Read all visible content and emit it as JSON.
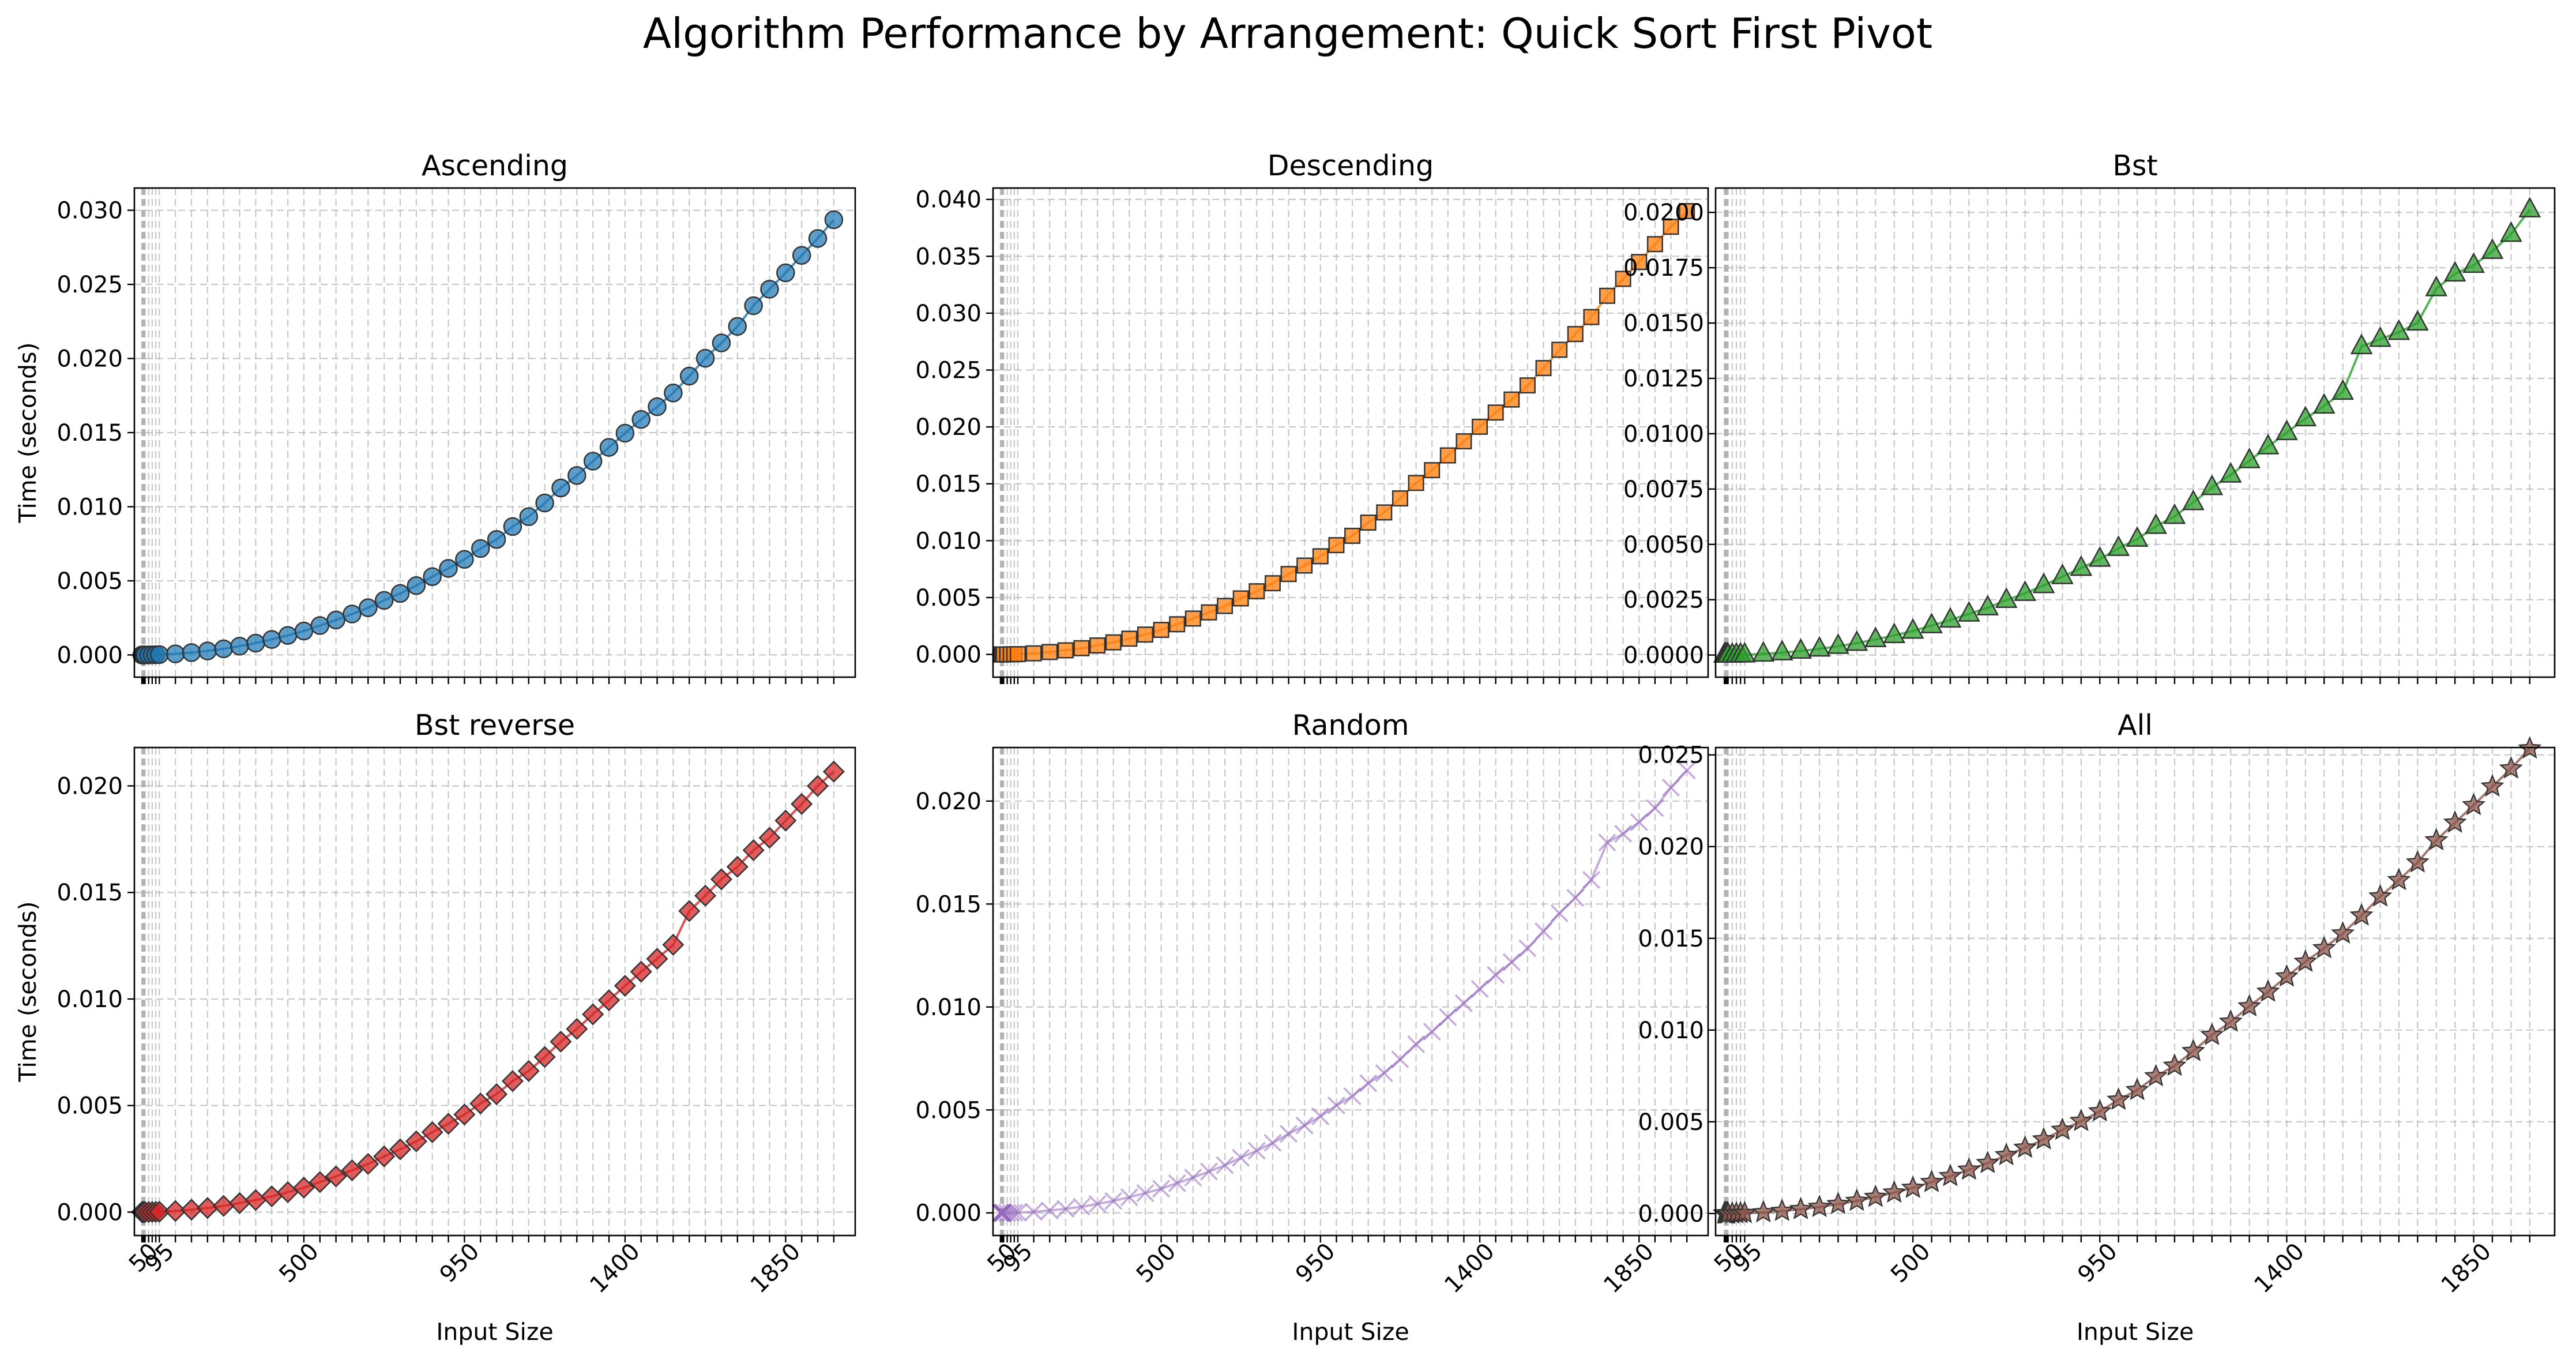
{
  "chart_data": {
    "type": "line",
    "title": "Algorithm Performance by Arrangement: Quick Sort First Pivot",
    "xlabel": "Input Size",
    "ylabel": "Time (seconds)",
    "x": [
      1,
      2,
      3,
      4,
      5,
      6,
      7,
      8,
      9,
      10,
      20,
      30,
      40,
      50,
      95,
      140,
      185,
      230,
      275,
      320,
      365,
      410,
      455,
      500,
      545,
      590,
      635,
      680,
      725,
      770,
      815,
      860,
      905,
      950,
      995,
      1040,
      1085,
      1130,
      1175,
      1220,
      1265,
      1310,
      1355,
      1400,
      1445,
      1490,
      1535,
      1580,
      1625,
      1670,
      1715,
      1760,
      1805,
      1850,
      1895,
      1940
    ],
    "xticks": [
      50,
      95,
      500,
      950,
      1400,
      1850
    ],
    "grid": true,
    "panels": [
      {
        "title": "Ascending",
        "color": "#1f77b4",
        "marker": "circle",
        "yticks": [
          0.0,
          0.005,
          0.01,
          0.015,
          0.02,
          0.025,
          0.03
        ],
        "ylim": [
          -0.0015,
          0.0315
        ],
        "values": [
          0,
          0,
          0,
          0,
          0,
          0,
          0,
          0,
          0,
          1e-06,
          4e-06,
          8e-06,
          1.5e-05,
          2.1e-05,
          7.2e-05,
          0.000159,
          0.00027,
          0.000411,
          0.000593,
          0.000796,
          0.001044,
          0.001318,
          0.001613,
          0.001982,
          0.002358,
          0.002762,
          0.003184,
          0.003681,
          0.004149,
          0.004677,
          0.005283,
          0.005838,
          0.006449,
          0.007179,
          0.007793,
          0.008662,
          0.009329,
          0.010252,
          0.011266,
          0.012106,
          0.013073,
          0.014003,
          0.014959,
          0.015891,
          0.016747,
          0.017675,
          0.018813,
          0.020016,
          0.021049,
          0.022166,
          0.023561,
          0.024675,
          0.025781,
          0.026956,
          0.028097,
          0.029359
        ]
      },
      {
        "title": "Descending",
        "color": "#ff7f0e",
        "marker": "square",
        "yticks": [
          0.0,
          0.005,
          0.01,
          0.015,
          0.02,
          0.025,
          0.03,
          0.035,
          0.04
        ],
        "ylim": [
          -0.002,
          0.041
        ],
        "values": [
          0,
          0,
          0,
          0,
          0,
          0,
          0,
          0,
          0,
          1e-06,
          5e-06,
          1e-05,
          1.8e-05,
          2.7e-05,
          9.4e-05,
          0.000212,
          0.000359,
          0.000547,
          0.000789,
          0.001059,
          0.001383,
          0.001744,
          0.002155,
          0.002651,
          0.003153,
          0.003694,
          0.004259,
          0.004925,
          0.005551,
          0.006258,
          0.007068,
          0.007812,
          0.008628,
          0.009605,
          0.010427,
          0.011589,
          0.012482,
          0.013718,
          0.015076,
          0.016198,
          0.017494,
          0.018736,
          0.020015,
          0.021263,
          0.022407,
          0.023649,
          0.025172,
          0.026781,
          0.028163,
          0.029658,
          0.031526,
          0.033016,
          0.034496,
          0.036068,
          0.037595,
          0.038971
        ]
      },
      {
        "title": "Bst",
        "color": "#2ca02c",
        "marker": "triangle",
        "yticks": [
          0.0,
          0.0025,
          0.005,
          0.0075,
          0.01,
          0.0125,
          0.015,
          0.0175,
          0.02
        ],
        "ylim": [
          -0.001,
          0.0211
        ],
        "values": [
          0,
          0,
          0,
          0,
          0,
          0,
          0,
          0,
          0,
          1e-06,
          2e-06,
          5e-06,
          9e-06,
          1.3e-05,
          4.8e-05,
          0.000107,
          0.000181,
          0.000276,
          0.000398,
          0.000535,
          0.000701,
          0.000886,
          0.001085,
          0.001332,
          0.001585,
          0.001857,
          0.002139,
          0.002474,
          0.002789,
          0.003144,
          0.003551,
          0.003924,
          0.004334,
          0.004825,
          0.005237,
          0.005821,
          0.00627,
          0.006891,
          0.007573,
          0.008137,
          0.008787,
          0.009412,
          0.010054,
          0.01068,
          0.011255,
          0.011879,
          0.013939,
          0.014271,
          0.014584,
          0.015006,
          0.016558,
          0.017221,
          0.017612,
          0.018245,
          0.019014,
          0.020121
        ]
      },
      {
        "title": "Bst reverse",
        "color": "#d62728",
        "marker": "diamond",
        "yticks": [
          0.0,
          0.005,
          0.01,
          0.015,
          0.02
        ],
        "ylim": [
          -0.0011,
          0.0218
        ],
        "values": [
          0,
          0,
          0,
          0,
          0,
          0,
          0,
          0,
          0,
          1e-06,
          3e-06,
          6e-06,
          1e-05,
          1.5e-05,
          5.1e-05,
          0.000113,
          0.000191,
          0.000292,
          0.000421,
          0.000565,
          0.000741,
          0.000935,
          0.001146,
          0.001407,
          0.001674,
          0.001961,
          0.00226,
          0.002613,
          0.002945,
          0.00332,
          0.00375,
          0.004144,
          0.004577,
          0.005096,
          0.005531,
          0.006148,
          0.006622,
          0.007277,
          0.007998,
          0.008594,
          0.009281,
          0.009941,
          0.010619,
          0.011279,
          0.011887,
          0.012546,
          0.014128,
          0.014847,
          0.015617,
          0.016203,
          0.016981,
          0.017566,
          0.018371,
          0.019152,
          0.019998,
          0.020671
        ]
      },
      {
        "title": "Random",
        "color": "#9467bd",
        "marker": "x",
        "yticks": [
          0.0,
          0.005,
          0.01,
          0.015,
          0.02
        ],
        "ylim": [
          -0.0011,
          0.0226
        ],
        "values": [
          0,
          0,
          0,
          0,
          0,
          0,
          0,
          0,
          0,
          1e-06,
          3e-06,
          6e-06,
          1e-05,
          1.5e-05,
          5.2e-05,
          0.000116,
          0.000196,
          0.000299,
          0.000431,
          0.000579,
          0.000759,
          0.000958,
          0.001173,
          0.001441,
          0.001714,
          0.002008,
          0.002315,
          0.002676,
          0.003016,
          0.0034,
          0.003841,
          0.004244,
          0.004688,
          0.005219,
          0.005665,
          0.006297,
          0.006782,
          0.007453,
          0.008191,
          0.008801,
          0.009505,
          0.01018,
          0.010875,
          0.011552,
          0.012174,
          0.012849,
          0.013676,
          0.014551,
          0.015302,
          0.016174,
          0.017987,
          0.018412,
          0.018974,
          0.019658,
          0.020653,
          0.021491
        ]
      },
      {
        "title": "All",
        "color": "#8c564b",
        "marker": "star",
        "yticks": [
          0.0,
          0.005,
          0.01,
          0.015,
          0.02,
          0.025
        ],
        "ylim": [
          -0.0012,
          0.0254
        ],
        "values": [
          0,
          0,
          0,
          0,
          0,
          0,
          0,
          0,
          0,
          1e-06,
          3e-06,
          7e-06,
          1.2e-05,
          1.8e-05,
          6.2e-05,
          0.000137,
          0.000233,
          0.000355,
          0.000512,
          0.000688,
          0.000901,
          0.001138,
          0.001394,
          0.001712,
          0.002036,
          0.002385,
          0.002749,
          0.003178,
          0.003582,
          0.004038,
          0.004561,
          0.00504,
          0.005567,
          0.006198,
          0.006728,
          0.007478,
          0.008054,
          0.008851,
          0.009727,
          0.010452,
          0.011288,
          0.01209,
          0.012915,
          0.013719,
          0.014458,
          0.01526,
          0.016242,
          0.01728,
          0.018172,
          0.019136,
          0.020341,
          0.021303,
          0.022257,
          0.023272,
          0.024257,
          0.025346
        ]
      }
    ]
  }
}
